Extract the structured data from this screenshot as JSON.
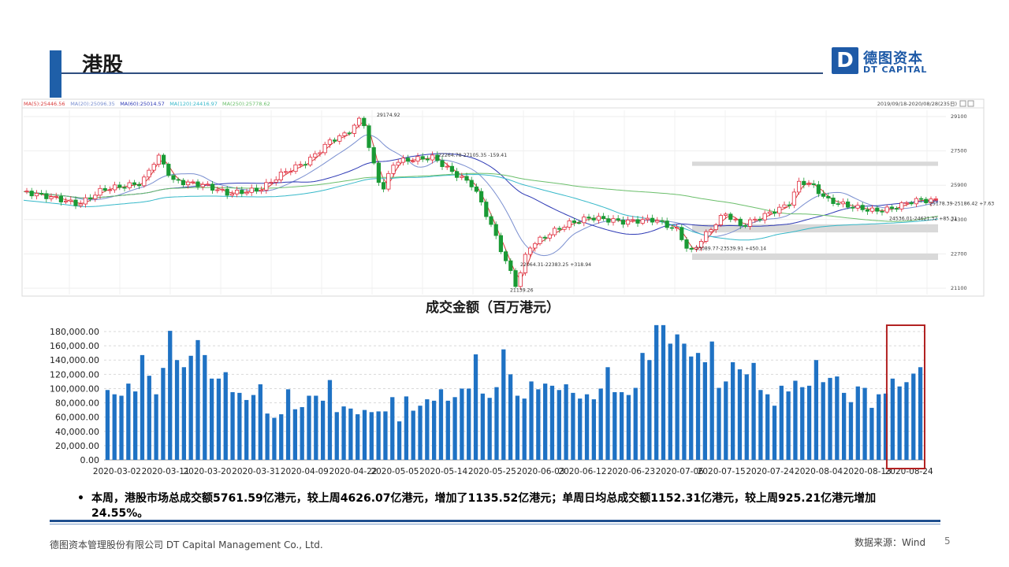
{
  "header": {
    "title": "港股"
  },
  "logo": {
    "mark": "D",
    "cn": "德图资本",
    "en": "DT CAPITAL"
  },
  "kline": {
    "ma_labels": [
      "MA(5):25446.56",
      "MA(20):25096.35",
      "MA(60):25014.57",
      "MA(120):24416.97",
      "MA(250):25778.62"
    ],
    "range_label": "2019/09/18-2020/08/28(235日)",
    "y_ticks": [
      "29100",
      "27500",
      "25900",
      "24300",
      "22700",
      "21100"
    ],
    "annotations": [
      "29174.92",
      "22264.78-27105.35  -159.41",
      "22064.31-22383.25  +318.94",
      "21139.26",
      "23089.77-23539.91  +450.14",
      "24536.01-24621.32  +85.31",
      "25178.39-25186.42  +7.63"
    ],
    "colors": {
      "up": "#e0283a",
      "down": "#1a9a35",
      "ma5": "#d83a3a",
      "ma20": "#7a8fd0",
      "ma60": "#2e3ab5",
      "ma120": "#35b8c9",
      "ma250": "#6bbf6b"
    }
  },
  "volume_chart": {
    "title": "成交金额（百万港元）",
    "highlight_color": "#b22222",
    "bar_color": "#1f72c4"
  },
  "chart_data": {
    "type": "bar",
    "title": "成交金额（百万港元）",
    "ylim": [
      0,
      180000
    ],
    "y_ticks": [
      "0.00",
      "20,000.00",
      "40,000.00",
      "60,000.00",
      "80,000.00",
      "100,000.00",
      "120,000.00",
      "140,000.00",
      "160,000.00",
      "180,000.00"
    ],
    "x_tick_labels": [
      "2020-03-02",
      "2020-03-11",
      "2020-03-20",
      "2020-03-31",
      "2020-04-09",
      "2020-04-22",
      "2020-05-05",
      "2020-05-14",
      "2020-05-25",
      "2020-06-03",
      "2020-06-12",
      "2020-06-23",
      "2020-07-06",
      "2020-07-15",
      "2020-07-24",
      "2020-08-04",
      "2020-08-13",
      "2020-08-24"
    ],
    "values": [
      98000,
      92000,
      90000,
      107000,
      96000,
      147000,
      118000,
      92000,
      129000,
      181000,
      140000,
      130000,
      146000,
      168000,
      147000,
      114000,
      114000,
      123000,
      95000,
      94000,
      84000,
      91000,
      106000,
      65000,
      59000,
      64000,
      99000,
      71000,
      74000,
      90000,
      90000,
      83000,
      112000,
      67000,
      75000,
      72000,
      64000,
      70000,
      67000,
      68000,
      68000,
      88000,
      54000,
      89000,
      69000,
      76000,
      85000,
      83000,
      99000,
      83000,
      88000,
      100000,
      100000,
      148000,
      93000,
      87000,
      102000,
      155000,
      120000,
      90000,
      86000,
      110000,
      99000,
      107000,
      104000,
      98000,
      106000,
      94000,
      86000,
      92000,
      85000,
      100000,
      130000,
      95000,
      95000,
      91000,
      101000,
      150000,
      140000,
      189000,
      189000,
      163000,
      176000,
      163000,
      145000,
      150000,
      137000,
      166000,
      101000,
      110000,
      137000,
      127000,
      120000,
      136000,
      98000,
      92000,
      76000,
      104000,
      96000,
      111000,
      102000,
      104000,
      140000,
      109000,
      115000,
      117000,
      94000,
      81000,
      103000,
      101000,
      73000,
      92000,
      93000,
      114000,
      103000,
      109000,
      121000,
      130000
    ],
    "highlight_last_n": 5
  },
  "summary": {
    "bullet": "•",
    "text": "本周，港股市场总成交额5761.59亿港元，较上周4626.07亿港元，增加了1135.52亿港元；单周日均总成交额1152.31亿港元，较上周925.21亿港元增加24.55%。"
  },
  "footer": {
    "company": "德图资本管理股份有限公司  DT Capital  Management  Co., Ltd.",
    "source": "数据来源：Wind",
    "page": "5"
  }
}
